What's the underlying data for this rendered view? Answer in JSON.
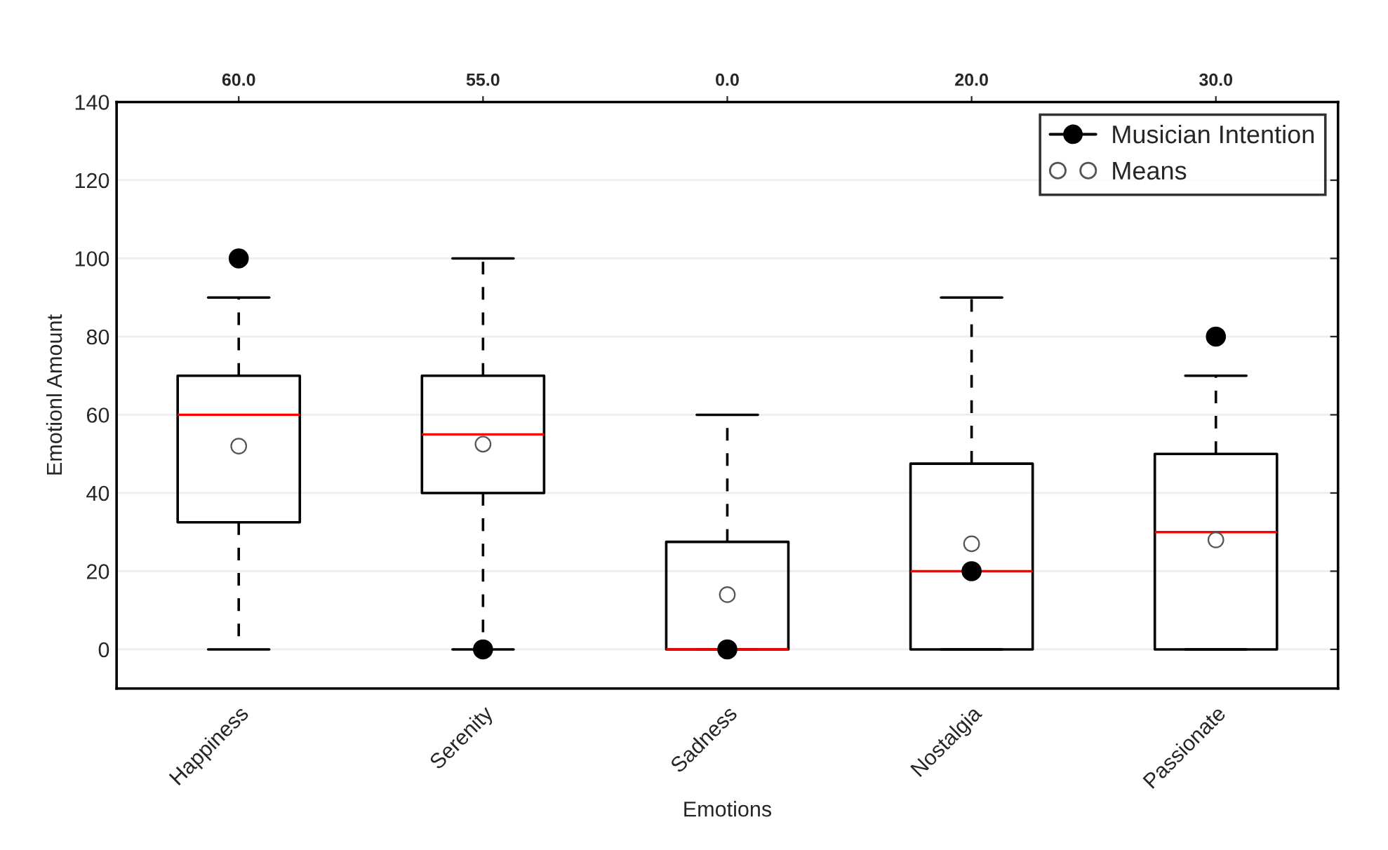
{
  "chart_data": {
    "type": "box",
    "xlabel": "Emotions",
    "ylabel": "Emotionl Amount",
    "categories": [
      "Happiness",
      "Serenity",
      "Sadness",
      "Nostalgia",
      "Passionate"
    ],
    "ylim": [
      -10,
      140
    ],
    "yticks": [
      0,
      20,
      40,
      60,
      80,
      100,
      120,
      140
    ],
    "grid": "y",
    "legend": "top right",
    "series": [
      {
        "type": "box",
        "color": "#000000",
        "value_labels": [
          "60.0",
          "55.0",
          "0.0",
          "20.0",
          "30.0"
        ],
        "boxes": [
          {
            "low": 0,
            "q1": 32.5,
            "median": 60,
            "q3": 70,
            "high": 90
          },
          {
            "low": 0,
            "q1": 40,
            "median": 55,
            "q3": 70,
            "high": 100
          },
          {
            "low": 0,
            "q1": 0,
            "median": 0,
            "q3": 27.5,
            "high": 60
          },
          {
            "low": 0,
            "q1": 0,
            "median": 20,
            "q3": 47.5,
            "high": 90
          },
          {
            "low": 0,
            "q1": 0,
            "median": 30,
            "q3": 50,
            "high": 70
          }
        ]
      },
      {
        "type": "scatter",
        "name": "Musician Intention",
        "color": "#000000",
        "marker": "circle",
        "x": [
          "Happiness",
          "Serenity",
          "Sadness",
          "Nostalgia",
          "Passionate"
        ],
        "values": [
          100,
          0,
          0,
          20,
          80
        ]
      },
      {
        "type": "scatter",
        "name": "Means",
        "color": "#ffffff",
        "marker": "circle",
        "x": [
          "Happiness",
          "Serenity",
          "Sadness",
          "Nostalgia",
          "Passionate"
        ],
        "values": [
          52,
          52.5,
          14,
          27,
          28
        ]
      }
    ]
  }
}
